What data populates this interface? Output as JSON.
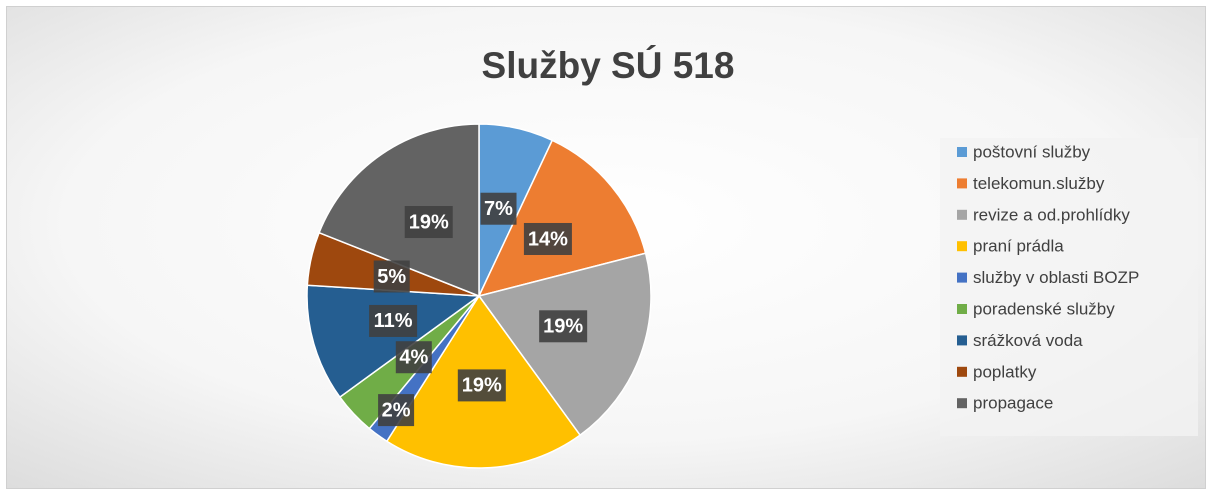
{
  "chart_data": {
    "type": "pie",
    "title": "Služby SÚ 518",
    "categories": [
      "poštovní služby",
      "telekomun.služby",
      "revize a od.prohlídky",
      "praní prádla",
      "služby v oblasti BOZP",
      "poradenské služby",
      "srážková voda",
      "poplatky",
      "propagace"
    ],
    "values": [
      7,
      14,
      19,
      19,
      2,
      4,
      11,
      5,
      19
    ],
    "value_labels": [
      "7%",
      "14%",
      "19%",
      "19%",
      "2%",
      "4%",
      "11%",
      "5%",
      "19%"
    ],
    "colors": [
      "#5b9bd5",
      "#ed7d31",
      "#a5a5a5",
      "#ffc000",
      "#4472c4",
      "#70ad47",
      "#255e91",
      "#9e480e",
      "#636363"
    ],
    "legend": "right"
  }
}
